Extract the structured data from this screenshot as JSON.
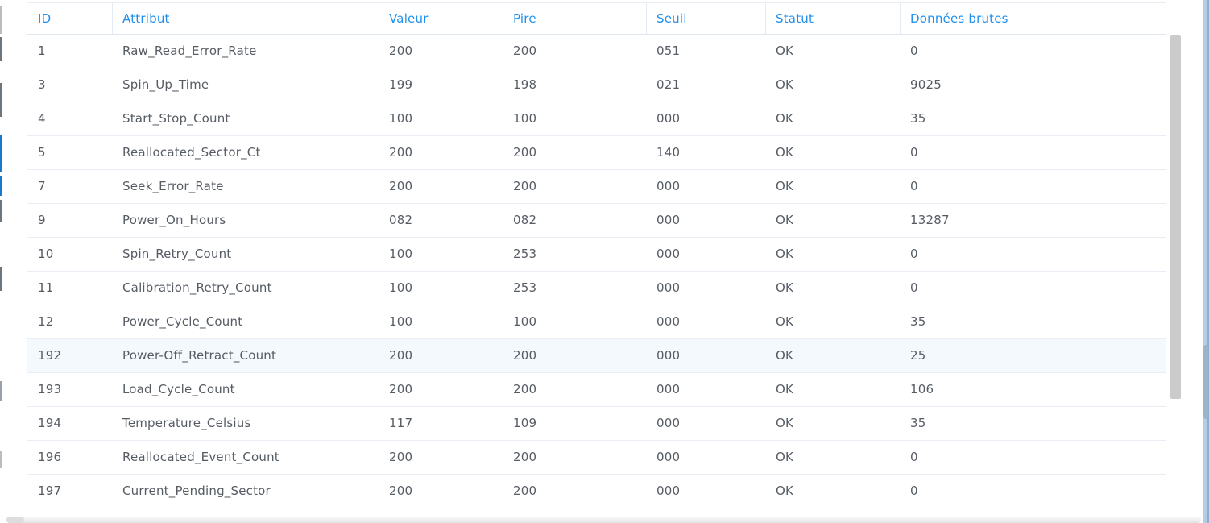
{
  "table": {
    "columns": [
      {
        "key": "id",
        "label": "ID"
      },
      {
        "key": "attr",
        "label": "Attribut"
      },
      {
        "key": "valeur",
        "label": "Valeur"
      },
      {
        "key": "pire",
        "label": "Pire"
      },
      {
        "key": "seuil",
        "label": "Seuil"
      },
      {
        "key": "statut",
        "label": "Statut"
      },
      {
        "key": "brutes",
        "label": "Données brutes"
      }
    ],
    "rows": [
      {
        "id": "1",
        "attr": "Raw_Read_Error_Rate",
        "valeur": "200",
        "pire": "200",
        "seuil": "051",
        "statut": "OK",
        "brutes": "0",
        "highlighted": false
      },
      {
        "id": "3",
        "attr": "Spin_Up_Time",
        "valeur": "199",
        "pire": "198",
        "seuil": "021",
        "statut": "OK",
        "brutes": "9025",
        "highlighted": false
      },
      {
        "id": "4",
        "attr": "Start_Stop_Count",
        "valeur": "100",
        "pire": "100",
        "seuil": "000",
        "statut": "OK",
        "brutes": "35",
        "highlighted": false
      },
      {
        "id": "5",
        "attr": "Reallocated_Sector_Ct",
        "valeur": "200",
        "pire": "200",
        "seuil": "140",
        "statut": "OK",
        "brutes": "0",
        "highlighted": false
      },
      {
        "id": "7",
        "attr": "Seek_Error_Rate",
        "valeur": "200",
        "pire": "200",
        "seuil": "000",
        "statut": "OK",
        "brutes": "0",
        "highlighted": false
      },
      {
        "id": "9",
        "attr": "Power_On_Hours",
        "valeur": "082",
        "pire": "082",
        "seuil": "000",
        "statut": "OK",
        "brutes": "13287",
        "highlighted": false
      },
      {
        "id": "10",
        "attr": "Spin_Retry_Count",
        "valeur": "100",
        "pire": "253",
        "seuil": "000",
        "statut": "OK",
        "brutes": "0",
        "highlighted": false
      },
      {
        "id": "11",
        "attr": "Calibration_Retry_Count",
        "valeur": "100",
        "pire": "253",
        "seuil": "000",
        "statut": "OK",
        "brutes": "0",
        "highlighted": false
      },
      {
        "id": "12",
        "attr": "Power_Cycle_Count",
        "valeur": "100",
        "pire": "100",
        "seuil": "000",
        "statut": "OK",
        "brutes": "35",
        "highlighted": false
      },
      {
        "id": "192",
        "attr": "Power-Off_Retract_Count",
        "valeur": "200",
        "pire": "200",
        "seuil": "000",
        "statut": "OK",
        "brutes": "25",
        "highlighted": true
      },
      {
        "id": "193",
        "attr": "Load_Cycle_Count",
        "valeur": "200",
        "pire": "200",
        "seuil": "000",
        "statut": "OK",
        "brutes": "106",
        "highlighted": false
      },
      {
        "id": "194",
        "attr": "Temperature_Celsius",
        "valeur": "117",
        "pire": "109",
        "seuil": "000",
        "statut": "OK",
        "brutes": "35",
        "highlighted": false
      },
      {
        "id": "196",
        "attr": "Reallocated_Event_Count",
        "valeur": "200",
        "pire": "200",
        "seuil": "000",
        "statut": "OK",
        "brutes": "0",
        "highlighted": false
      },
      {
        "id": "197",
        "attr": "Current_Pending_Sector",
        "valeur": "200",
        "pire": "200",
        "seuil": "000",
        "statut": "OK",
        "brutes": "0",
        "highlighted": false
      }
    ]
  },
  "colors": {
    "header_text_blue": "#2090ee",
    "body_text_gray": "#565c64",
    "row_highlight": "#f3f9fd",
    "row_border": "#e9eef4",
    "scrollbar_thumb": "#cbcbcb",
    "window_edge_blue": "#b5cde4"
  }
}
